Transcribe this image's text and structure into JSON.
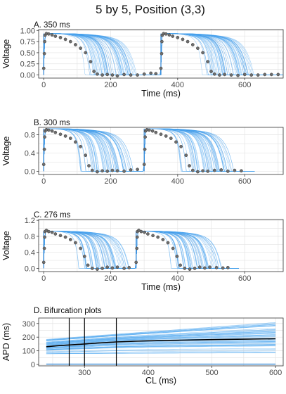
{
  "figure_title": "5 by 5, Position (3,3)",
  "colors": {
    "trace": "#4DA6F0",
    "trace_dark": "#2F85D6",
    "points": "#555555",
    "points_fill": "#6E6E6E",
    "curve": "#000000",
    "grid": "#E4E4E4",
    "frame": "#333333"
  },
  "chart_data": [
    {
      "type": "line",
      "title": "A. 350 ms",
      "xlabel": "Time (ms)",
      "ylabel": "Voltage",
      "xlim": [
        -15,
        715
      ],
      "ylim": [
        -0.07,
        1.02
      ],
      "xticks": [
        0,
        200,
        400,
        600
      ],
      "yticks": [
        0.0,
        0.25,
        0.5,
        0.75,
        1.0
      ],
      "ytick_labels": [
        "0.00",
        "0.25",
        "0.50",
        "0.75",
        "1.00"
      ],
      "cycle_length": 350,
      "beats": 2,
      "ensemble_apd_range": [
        110,
        270
      ],
      "ensemble_traces": 60,
      "observed_points": [
        [
          0,
          0.15
        ],
        [
          2,
          0.48
        ],
        [
          3,
          0.75
        ],
        [
          4,
          0.89
        ],
        [
          8,
          0.93
        ],
        [
          15,
          0.92
        ],
        [
          25,
          0.9
        ],
        [
          35,
          0.87
        ],
        [
          50,
          0.84
        ],
        [
          65,
          0.8
        ],
        [
          80,
          0.75
        ],
        [
          95,
          0.68
        ],
        [
          110,
          0.6
        ],
        [
          125,
          0.5
        ],
        [
          140,
          0.3
        ],
        [
          150,
          0.08
        ],
        [
          160,
          0.02
        ],
        [
          175,
          0.0
        ],
        [
          190,
          0.01
        ],
        [
          205,
          0.0
        ],
        [
          220,
          -0.02
        ],
        [
          240,
          0.01
        ],
        [
          260,
          0.0
        ],
        [
          280,
          0.0
        ],
        [
          300,
          0.02
        ],
        [
          320,
          0.04
        ],
        [
          335,
          0.03
        ],
        [
          350,
          0.15
        ],
        [
          352,
          0.48
        ],
        [
          353,
          0.75
        ],
        [
          354,
          0.89
        ],
        [
          358,
          0.93
        ],
        [
          365,
          0.92
        ],
        [
          375,
          0.9
        ],
        [
          385,
          0.87
        ],
        [
          400,
          0.84
        ],
        [
          415,
          0.8
        ],
        [
          430,
          0.75
        ],
        [
          445,
          0.68
        ],
        [
          460,
          0.6
        ],
        [
          475,
          0.5
        ],
        [
          490,
          0.3
        ],
        [
          500,
          0.08
        ],
        [
          510,
          0.02
        ],
        [
          525,
          0.0
        ],
        [
          540,
          0.01
        ],
        [
          560,
          0.0
        ],
        [
          580,
          -0.01
        ],
        [
          600,
          0.01
        ],
        [
          620,
          0.0
        ],
        [
          640,
          0.0
        ],
        [
          660,
          0.01
        ],
        [
          680,
          0.01
        ],
        [
          700,
          0.01
        ]
      ]
    },
    {
      "type": "line",
      "title": "B. 300 ms",
      "xlabel": "",
      "ylabel": "Voltage",
      "xlim": [
        -15,
        715
      ],
      "ylim": [
        -0.07,
        0.96
      ],
      "xticks": [
        0,
        200,
        400,
        600
      ],
      "yticks": [
        0.0,
        0.4,
        0.8
      ],
      "ytick_labels": [
        "0.0",
        "0.4",
        "0.8"
      ],
      "cycle_length": 300,
      "beats": 2,
      "ensemble_apd_range": [
        100,
        260
      ],
      "ensemble_traces": 60,
      "observed_points": [
        [
          0,
          0.15
        ],
        [
          2,
          0.48
        ],
        [
          3,
          0.75
        ],
        [
          4,
          0.88
        ],
        [
          8,
          0.91
        ],
        [
          15,
          0.9
        ],
        [
          25,
          0.88
        ],
        [
          35,
          0.85
        ],
        [
          50,
          0.81
        ],
        [
          65,
          0.77
        ],
        [
          80,
          0.72
        ],
        [
          95,
          0.64
        ],
        [
          110,
          0.54
        ],
        [
          125,
          0.35
        ],
        [
          135,
          0.12
        ],
        [
          145,
          0.02
        ],
        [
          160,
          -0.01
        ],
        [
          175,
          0.01
        ],
        [
          190,
          0.0
        ],
        [
          205,
          0.02
        ],
        [
          220,
          0.01
        ],
        [
          240,
          0.0
        ],
        [
          260,
          0.03
        ],
        [
          280,
          0.04
        ],
        [
          300,
          0.15
        ],
        [
          302,
          0.48
        ],
        [
          303,
          0.75
        ],
        [
          304,
          0.88
        ],
        [
          308,
          0.91
        ],
        [
          315,
          0.9
        ],
        [
          325,
          0.88
        ],
        [
          335,
          0.85
        ],
        [
          350,
          0.81
        ],
        [
          365,
          0.77
        ],
        [
          380,
          0.72
        ],
        [
          395,
          0.64
        ],
        [
          410,
          0.54
        ],
        [
          425,
          0.35
        ],
        [
          435,
          0.12
        ],
        [
          445,
          0.02
        ],
        [
          460,
          -0.01
        ],
        [
          475,
          0.01
        ],
        [
          490,
          0.0
        ],
        [
          510,
          0.02
        ],
        [
          530,
          0.03
        ],
        [
          550,
          0.0
        ],
        [
          570,
          0.02
        ],
        [
          590,
          0.01
        ]
      ]
    },
    {
      "type": "line",
      "title": "C. 276 ms",
      "xlabel": "Time (ms)",
      "ylabel": "Voltage",
      "xlim": [
        -15,
        715
      ],
      "ylim": [
        -0.08,
        1.22
      ],
      "xticks": [
        0,
        200,
        400,
        600
      ],
      "yticks": [
        0.0,
        0.4,
        0.8,
        1.2
      ],
      "ytick_labels": [
        "0.0",
        "0.4",
        "0.8",
        "1.2"
      ],
      "cycle_length": 276,
      "beats": 2,
      "ensemble_apd_range": [
        95,
        250
      ],
      "ensemble_traces": 60,
      "observed_points": [
        [
          0,
          0.15
        ],
        [
          2,
          0.5
        ],
        [
          3,
          0.78
        ],
        [
          4,
          0.92
        ],
        [
          8,
          0.95
        ],
        [
          15,
          0.92
        ],
        [
          25,
          0.9
        ],
        [
          35,
          0.86
        ],
        [
          50,
          0.82
        ],
        [
          65,
          0.78
        ],
        [
          80,
          0.72
        ],
        [
          95,
          0.64
        ],
        [
          110,
          0.5
        ],
        [
          122,
          0.3
        ],
        [
          132,
          0.08
        ],
        [
          145,
          0.0
        ],
        [
          160,
          -0.02
        ],
        [
          175,
          0.0
        ],
        [
          190,
          0.03
        ],
        [
          205,
          0.01
        ],
        [
          220,
          0.03
        ],
        [
          240,
          0.0
        ],
        [
          255,
          0.02
        ],
        [
          276,
          0.15
        ],
        [
          278,
          0.5
        ],
        [
          279,
          0.78
        ],
        [
          280,
          0.92
        ],
        [
          284,
          0.95
        ],
        [
          291,
          0.92
        ],
        [
          301,
          0.9
        ],
        [
          311,
          0.86
        ],
        [
          326,
          0.82
        ],
        [
          341,
          0.78
        ],
        [
          356,
          0.72
        ],
        [
          371,
          0.64
        ],
        [
          386,
          0.5
        ],
        [
          398,
          0.3
        ],
        [
          408,
          0.08
        ],
        [
          421,
          0.0
        ],
        [
          436,
          -0.02
        ],
        [
          451,
          0.0
        ],
        [
          466,
          0.03
        ],
        [
          481,
          0.01
        ],
        [
          496,
          0.03
        ],
        [
          516,
          0.02
        ],
        [
          535,
          0.01
        ],
        [
          550,
          0.02
        ]
      ]
    },
    {
      "type": "line",
      "title": "D. Bifurcation plots",
      "xlabel": "CL (ms)",
      "ylabel": "APD (ms)",
      "xlim": [
        228,
        612
      ],
      "ylim": [
        -10,
        340
      ],
      "xticks": [
        300,
        400,
        500,
        600
      ],
      "yticks": [
        0,
        100,
        200,
        300
      ],
      "vlines": [
        276,
        300,
        350
      ],
      "mean_curve": {
        "x": [
          240,
          260,
          276,
          300,
          320,
          350,
          380,
          400,
          450,
          500,
          550,
          600
        ],
        "y": [
          130,
          138,
          143,
          150,
          157,
          165,
          170,
          173,
          178,
          182,
          185,
          188
        ]
      },
      "ensemble_at_600": [
        80,
        310
      ],
      "ensemble_at_240": [
        75,
        185
      ],
      "ensemble_traces": 60,
      "flat_line_y": 3
    }
  ]
}
